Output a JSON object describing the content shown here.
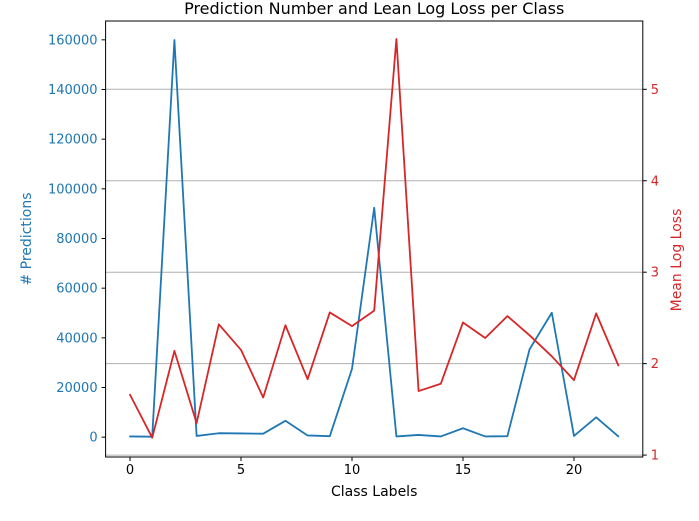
{
  "chart_data": {
    "type": "line",
    "title": "Prediction Number and Lean Log Loss per Class",
    "xlabel": "Class Labels",
    "ylabel_left": "# Predictions",
    "ylabel_right": "Mean Log Loss",
    "x": [
      0,
      1,
      2,
      3,
      4,
      5,
      6,
      7,
      8,
      9,
      10,
      11,
      12,
      13,
      14,
      15,
      16,
      17,
      18,
      19,
      20,
      21,
      22
    ],
    "series": [
      {
        "name": "# Predictions",
        "axis": "left",
        "color": "#1f77b4",
        "values": [
          300,
          200,
          159900,
          500,
          1600,
          1500,
          1400,
          6600,
          700,
          400,
          27500,
          92400,
          300,
          900,
          300,
          3600,
          300,
          400,
          35400,
          50100,
          500,
          8000,
          300
        ]
      },
      {
        "name": "Mean Log Loss",
        "axis": "right",
        "color": "#d62728",
        "values": [
          1.66,
          1.19,
          2.14,
          1.35,
          2.43,
          2.15,
          1.63,
          2.42,
          1.83,
          2.56,
          2.41,
          2.58,
          5.55,
          1.7,
          1.78,
          2.45,
          2.28,
          2.52,
          2.31,
          2.08,
          1.82,
          2.55,
          1.98
        ]
      }
    ],
    "x_ticks": [
      0,
      5,
      10,
      15,
      20
    ],
    "left_ticks": [
      0,
      20000,
      40000,
      60000,
      80000,
      100000,
      120000,
      140000,
      160000
    ],
    "right_ticks": [
      1,
      2,
      3,
      4,
      5
    ],
    "xlim": [
      -1.1,
      23.1
    ],
    "ylim_left": [
      -7980,
      167580
    ],
    "ylim_right": [
      0.979,
      5.747
    ],
    "grid": "horizontal-on-right-axis-ticks",
    "grid_color": "#b0b0b0",
    "spine_color": "#000000",
    "tick_color": "#000000",
    "left_label_color": "#1f77b4",
    "right_label_color": "#d62728",
    "legend": "none"
  }
}
